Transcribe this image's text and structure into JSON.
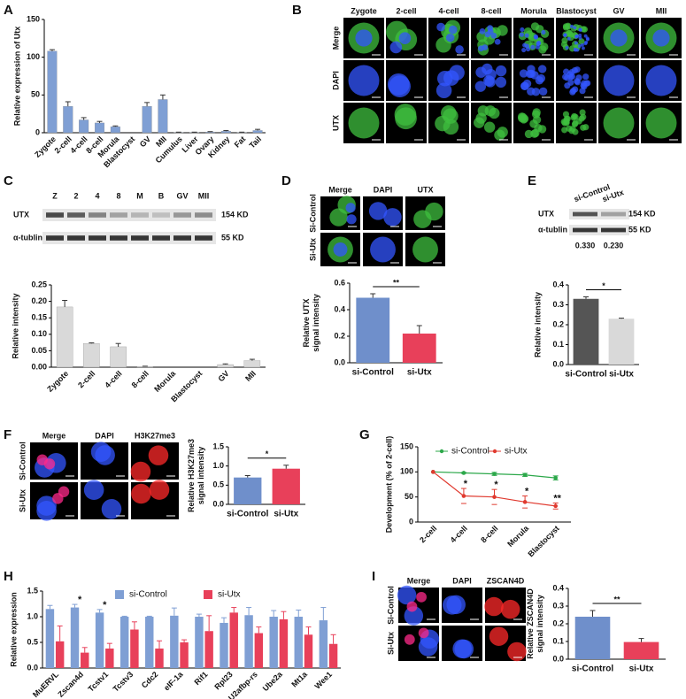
{
  "panel_letters": [
    "A",
    "B",
    "C",
    "D",
    "E",
    "F",
    "G",
    "H",
    "I"
  ],
  "image_panels": [
    {
      "columns": [
        "Zygote",
        "2-cell",
        "4-cell",
        "8-cell",
        "Morula",
        "Blastocyst",
        "GV",
        "MII"
      ],
      "rows": [
        "Merge",
        "DAPI",
        "UTX"
      ]
    },
    {
      "columns": [
        "Merge",
        "DAPI",
        "UTX"
      ],
      "rows": [
        "Si-Control",
        "Si-Utx"
      ]
    },
    {
      "columns": [
        "Merge",
        "DAPI",
        "H3K27me3"
      ],
      "rows": [
        "Si-Control",
        "Si-Utx"
      ]
    },
    {
      "columns": [
        "Merge",
        "DAPI",
        "ZSCAN4D"
      ],
      "rows": [
        "Si-Control",
        "Si-Utx"
      ]
    }
  ],
  "blots": [
    {
      "lanes": [
        "Z",
        "2",
        "4",
        "8",
        "M",
        "B",
        "GV",
        "MII"
      ],
      "rows": [
        {
          "protein": "UTX",
          "size": "154 KD"
        },
        {
          "protein": "α-tublin",
          "size": "55 KD"
        }
      ]
    },
    {
      "lanes": [
        "si-Control",
        "si-Utx"
      ],
      "rows": [
        {
          "protein": "UTX",
          "size": "154 KD"
        },
        {
          "protein": "α-tublin",
          "size": "55 KD"
        }
      ],
      "quantities": [
        {
          "value": 0.33,
          "label": "0.330"
        },
        {
          "value": 0.23,
          "label": "0.230"
        }
      ]
    }
  ],
  "chart_data": [
    {
      "type": "bar",
      "y_label": [
        "Relative expression of Utx"
      ],
      "categories": [
        "Zygote",
        "2-cell",
        "4-cell",
        "8-cell",
        "Morula",
        "Blastocyst",
        "GV",
        "MII",
        "Cumulus",
        "Liver",
        "Ovary",
        "Kidney",
        "Fat",
        "Tail"
      ],
      "values": [
        108,
        35,
        17,
        13,
        8,
        0,
        35,
        44,
        0.5,
        0.5,
        1,
        2,
        0.5,
        3
      ],
      "errors": [
        2,
        6,
        3,
        2,
        1,
        0,
        5,
        6,
        0.3,
        0.3,
        0.5,
        1,
        0.3,
        1.5
      ],
      "color": "#7f9fd4",
      "ylim": [
        0,
        150
      ],
      "yticks": [
        0,
        50,
        100,
        150
      ]
    },
    {
      "type": "bar",
      "y_label": [
        "Relative intensity"
      ],
      "categories": [
        "Zygote",
        "2-cell",
        "4-cell",
        "8-cell",
        "Morula",
        "Blastocyst",
        "GV",
        "MII"
      ],
      "values": [
        0.183,
        0.072,
        0.062,
        0.002,
        0,
        0,
        0.008,
        0.02
      ],
      "errors": [
        0.02,
        0.002,
        0.01,
        0.001,
        0,
        0,
        0.002,
        0.004
      ],
      "color": "#d9d9d9",
      "ylim": [
        0,
        0.25
      ],
      "yticks": [
        {
          "value": 0,
          "label": "0.00"
        },
        0.05,
        {
          "value": 0.1,
          "label": "0.10"
        },
        0.15,
        {
          "value": 0.2,
          "label": "0.20"
        },
        0.25
      ]
    },
    {
      "type": "bar",
      "y_label": [
        "Relative UTX",
        "signal intensity"
      ],
      "categories": [
        "si-Control",
        "si-Utx"
      ],
      "values": [
        0.49,
        0.22
      ],
      "errors": [
        0.03,
        0.06
      ],
      "colors": [
        "#6f8fcb",
        "#e8405a"
      ],
      "ylim": [
        0,
        0.6
      ],
      "yticks": [
        {
          "value": 0,
          "label": "0.0"
        },
        0.2,
        0.4,
        0.6
      ],
      "significance": "**"
    },
    {
      "type": "bar",
      "y_label": [
        "Relative intensity"
      ],
      "categories": [
        "si-Control",
        "si-Utx"
      ],
      "values": [
        0.33,
        0.23
      ],
      "errors": [
        0.01,
        0.003
      ],
      "colors": [
        "#555555",
        "#d9d9d9"
      ],
      "ylim": [
        0,
        0.4
      ],
      "yticks": [
        {
          "value": 0,
          "label": "0.0"
        },
        0.1,
        0.2,
        0.3,
        0.4
      ],
      "significance": "*"
    },
    {
      "type": "bar",
      "y_label": [
        "Relative H3K27me3",
        "signal intensity"
      ],
      "categories": [
        "si-Control",
        "si-Utx"
      ],
      "values": [
        0.7,
        0.93
      ],
      "errors": [
        0.05,
        0.09
      ],
      "colors": [
        "#6f8fcb",
        "#e8405a"
      ],
      "ylim": [
        0,
        1.5
      ],
      "yticks": [
        {
          "value": 0,
          "label": "0.0"
        },
        0.5,
        {
          "value": 1,
          "label": "1.0"
        },
        1.5
      ],
      "significance": "*"
    },
    {
      "type": "line",
      "y_label": [
        "Development (% of 2-cell)"
      ],
      "categories": [
        "2-cell",
        "4-cell",
        "8-cell",
        "Morula",
        "Blastocyst"
      ],
      "series": [
        {
          "name": "si-Control",
          "color": "#2ca84a",
          "values": [
            100,
            98,
            96,
            94,
            88
          ],
          "errors": [
            0,
            1,
            3,
            3,
            4
          ]
        },
        {
          "name": "si-Utx",
          "color": "#e03a2f",
          "values": [
            100,
            52,
            50,
            40,
            32
          ],
          "errors": [
            0,
            15,
            15,
            12,
            6
          ]
        }
      ],
      "ylim": [
        0,
        150
      ],
      "yticks": [
        0,
        50,
        100,
        150
      ],
      "legend": "top",
      "annotations": [
        "*",
        "*",
        "*",
        "**"
      ]
    },
    {
      "type": "bar",
      "y_label": [
        "Relative expression"
      ],
      "categories": [
        "MuERVL",
        "Zscan4d",
        "Tcstv1",
        "Tcstv3",
        "Cdc2",
        "eIF-1a",
        "Rif1",
        "Rpl23",
        "U2afbp-rs",
        "Ube2a",
        "Mt1a",
        "Wee1"
      ],
      "series": [
        {
          "name": "si-Control",
          "color": "#7f9fd4",
          "values": [
            1.15,
            1.18,
            1.08,
            1.0,
            1.0,
            1.02,
            1.0,
            0.88,
            1.03,
            1.0,
            1.0,
            0.93
          ],
          "errors": [
            0.07,
            0.06,
            0.06,
            0.01,
            0.01,
            0.15,
            0.05,
            0.1,
            0.15,
            0.12,
            0.13,
            0.25
          ]
        },
        {
          "name": "si-Utx",
          "color": "#e8405a",
          "values": [
            0.52,
            0.3,
            0.38,
            0.75,
            0.38,
            0.5,
            0.72,
            1.08,
            0.68,
            0.95,
            0.65,
            0.47
          ],
          "errors": [
            0.3,
            0.1,
            0.1,
            0.15,
            0.15,
            0.05,
            0.3,
            0.1,
            0.12,
            0.15,
            0.15,
            0.18
          ]
        }
      ],
      "ylim": [
        0,
        1.5
      ],
      "yticks": [
        {
          "value": 0,
          "label": "0.0"
        },
        0.5,
        {
          "value": 1,
          "label": "1.0"
        },
        1.5
      ],
      "legend": "top",
      "annotations": [
        "*",
        "*"
      ]
    },
    {
      "type": "bar",
      "y_label": [
        "Relative ZSCAN4D",
        "signal intensity"
      ],
      "categories": [
        "si-Control",
        "si-Utx"
      ],
      "values": [
        0.24,
        0.097
      ],
      "errors": [
        0.035,
        0.02
      ],
      "colors": [
        "#6f8fcb",
        "#e8405a"
      ],
      "ylim": [
        0,
        0.4
      ],
      "yticks": [
        {
          "value": 0,
          "label": "0.0"
        },
        0.1,
        0.2,
        0.3,
        0.4
      ],
      "significance": "**"
    }
  ]
}
